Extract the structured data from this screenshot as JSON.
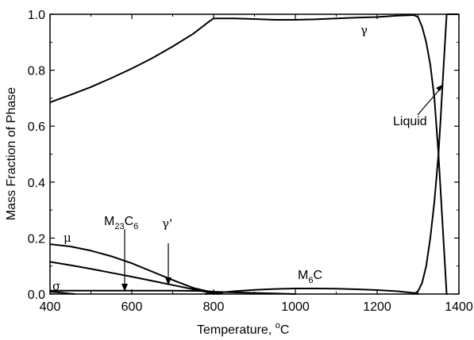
{
  "chart_data": {
    "type": "line",
    "xlabel": "Temperature, ",
    "xlabel_unit": "C",
    "xlabel_degree": "o",
    "ylabel": "Mass Fraction of Phase",
    "xlim": [
      400,
      1400
    ],
    "ylim": [
      0,
      1.0
    ],
    "x_ticks": [
      400,
      600,
      800,
      1000,
      1200,
      1400
    ],
    "y_ticks": [
      0.0,
      0.2,
      0.4,
      0.6,
      0.8,
      1.0
    ],
    "x_tick_labels": [
      "400",
      "600",
      "800",
      "1000",
      "1200",
      "1400"
    ],
    "y_tick_labels": [
      "0.0",
      "0.2",
      "0.4",
      "0.6",
      "0.8",
      "1.0"
    ],
    "grid": false,
    "color": "#000000",
    "series": [
      {
        "name": "γ",
        "x": [
          400,
          420,
          450,
          500,
          550,
          600,
          650,
          700,
          750,
          790,
          800,
          850,
          900,
          950,
          1000,
          1050,
          1100,
          1150,
          1200,
          1250,
          1290,
          1300,
          1310,
          1320,
          1330,
          1340,
          1350,
          1360,
          1370
        ],
        "y": [
          0.685,
          0.696,
          0.712,
          0.74,
          0.772,
          0.806,
          0.843,
          0.885,
          0.93,
          0.975,
          0.985,
          0.985,
          0.983,
          0.98,
          0.98,
          0.982,
          0.985,
          0.988,
          0.99,
          0.995,
          0.997,
          0.99,
          0.955,
          0.9,
          0.82,
          0.7,
          0.5,
          0.25,
          0.0
        ]
      },
      {
        "name": "Liquid",
        "x": [
          1290,
          1300,
          1310,
          1320,
          1330,
          1340,
          1350,
          1355,
          1360,
          1370,
          1380,
          1400
        ],
        "y": [
          0.0,
          0.01,
          0.04,
          0.1,
          0.2,
          0.33,
          0.5,
          0.62,
          0.75,
          1.0,
          1.0,
          1.0
        ]
      },
      {
        "name": "μ",
        "x": [
          400,
          450,
          500,
          550,
          600,
          650,
          700,
          750,
          800,
          810
        ],
        "y": [
          0.178,
          0.17,
          0.155,
          0.135,
          0.11,
          0.08,
          0.05,
          0.022,
          0.005,
          0.0
        ]
      },
      {
        "name": "M23C6",
        "x": [
          400,
          450,
          500,
          550,
          600,
          650,
          700,
          750,
          790,
          800
        ],
        "y": [
          0.115,
          0.103,
          0.09,
          0.076,
          0.062,
          0.047,
          0.032,
          0.017,
          0.005,
          0.0
        ]
      },
      {
        "name": "M6C",
        "x": [
          780,
          800,
          850,
          900,
          950,
          1000,
          1050,
          1100,
          1150,
          1200,
          1250,
          1290,
          1300
        ],
        "y": [
          0.0,
          0.003,
          0.01,
          0.015,
          0.018,
          0.02,
          0.02,
          0.019,
          0.017,
          0.014,
          0.01,
          0.004,
          0.0
        ]
      },
      {
        "name": "γ'",
        "x": [
          400,
          500,
          600,
          700,
          780,
          800,
          820
        ],
        "y": [
          0.012,
          0.012,
          0.012,
          0.012,
          0.011,
          0.008,
          0.003
        ]
      },
      {
        "name": "σ",
        "x": [
          400,
          420,
          440,
          460
        ],
        "y": [
          0.008,
          0.006,
          0.003,
          0.0
        ]
      },
      {
        "name": "",
        "x": [
          800,
          850,
          900,
          950,
          1000
        ],
        "y": [
          0.008,
          0.006,
          0.004,
          0.002,
          0.0
        ]
      }
    ],
    "annotations": [
      {
        "text": "γ",
        "kind": "greek"
      },
      {
        "text": "Liquid",
        "kind": "text"
      },
      {
        "text": "μ",
        "kind": "greek"
      },
      {
        "text": "σ",
        "kind": "greek"
      },
      {
        "text": "γ'",
        "kind": "greek"
      },
      {
        "text_main": "M",
        "text_sub1": "23",
        "text_mid": "C",
        "text_sub2": "6"
      },
      {
        "text_main": "M",
        "text_sub1": "6",
        "text_mid": "C"
      }
    ]
  }
}
